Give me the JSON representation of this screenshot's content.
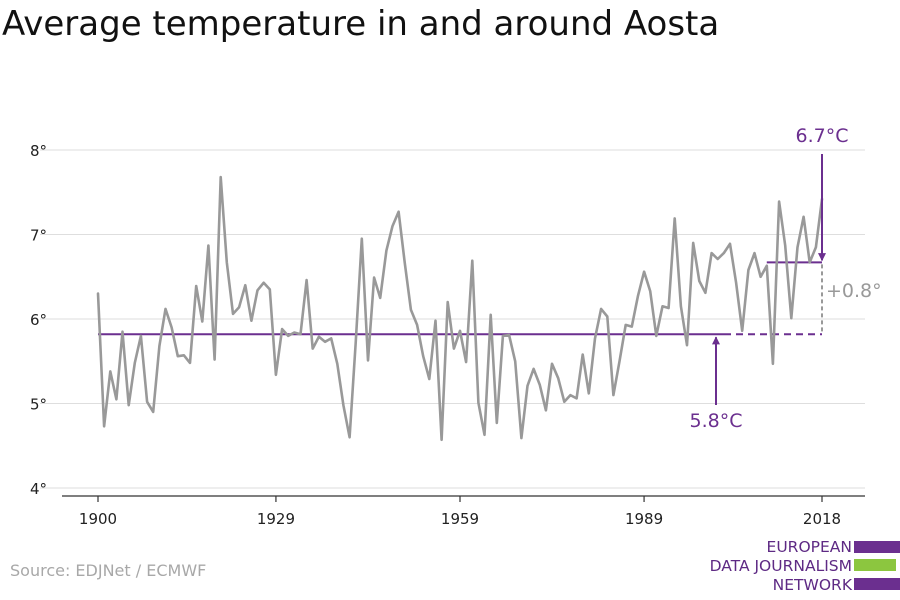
{
  "title": "Average temperature in and around Aosta",
  "source": "Source: EDJNet / ECMWF",
  "logo": {
    "lines": [
      "EUROPEAN",
      "DATA JOURNALISM",
      "NETWORK"
    ],
    "colors": [
      "#6b2f8f",
      "#8cc63f",
      "#6b2f8f"
    ]
  },
  "chart_data": {
    "type": "line",
    "title": "Average temperature in and around Aosta",
    "xlim": [
      1900,
      2018
    ],
    "ylim": [
      4,
      8
    ],
    "x_ticks": [
      1900,
      1929,
      1959,
      1989,
      2018
    ],
    "x_tick_labels": [
      "1900",
      "1929",
      "1959",
      "1989",
      "2018"
    ],
    "y_ticks": [
      4,
      5,
      6,
      7,
      8
    ],
    "y_tick_labels": [
      "4°",
      "5°",
      "6°",
      "7°",
      "8°"
    ],
    "grid": "horizontal",
    "series": [
      {
        "color": "#999999",
        "x": [
          1900,
          1901,
          1902,
          1903,
          1904,
          1905,
          1906,
          1907,
          1908,
          1909,
          1910,
          1911,
          1912,
          1913,
          1914,
          1915,
          1916,
          1917,
          1918,
          1919,
          1920,
          1921,
          1922,
          1923,
          1924,
          1925,
          1926,
          1927,
          1928,
          1929,
          1930,
          1931,
          1932,
          1933,
          1934,
          1935,
          1936,
          1937,
          1938,
          1939,
          1940,
          1941,
          1942,
          1943,
          1944,
          1945,
          1946,
          1947,
          1948,
          1949,
          1950,
          1951,
          1952,
          1953,
          1954,
          1955,
          1956,
          1957,
          1958,
          1959,
          1960,
          1961,
          1962,
          1963,
          1964,
          1965,
          1966,
          1967,
          1968,
          1969,
          1970,
          1971,
          1972,
          1973,
          1974,
          1975,
          1976,
          1977,
          1978,
          1979,
          1980,
          1981,
          1982,
          1983,
          1984,
          1985,
          1986,
          1987,
          1988,
          1989,
          1990,
          1991,
          1992,
          1993,
          1994,
          1995,
          1996,
          1997,
          1998,
          1999,
          2000,
          2001,
          2002,
          2003,
          2004,
          2005,
          2006,
          2007,
          2008,
          2009,
          2010,
          2011,
          2012,
          2013,
          2014,
          2015,
          2016,
          2017,
          2018
        ],
        "values": [
          6.3,
          4.73,
          5.38,
          5.05,
          5.85,
          4.98,
          5.48,
          5.8,
          5.02,
          4.9,
          5.68,
          6.12,
          5.9,
          5.56,
          5.57,
          5.48,
          6.39,
          5.97,
          6.87,
          5.52,
          7.68,
          6.67,
          6.06,
          6.14,
          6.4,
          5.98,
          6.34,
          6.43,
          6.35,
          5.34,
          5.88,
          5.8,
          5.84,
          5.82,
          6.46,
          5.65,
          5.79,
          5.73,
          5.77,
          5.47,
          4.98,
          4.6,
          5.72,
          6.95,
          5.51,
          6.49,
          6.25,
          6.81,
          7.1,
          7.27,
          6.66,
          6.11,
          5.93,
          5.56,
          5.29,
          5.98,
          4.57,
          6.2,
          5.65,
          5.86,
          5.49,
          6.69,
          5.01,
          4.63,
          6.05,
          4.77,
          5.8,
          5.81,
          5.5,
          4.59,
          5.21,
          5.41,
          5.22,
          4.92,
          5.47,
          5.3,
          5.02,
          5.1,
          5.06,
          5.58,
          5.12,
          5.77,
          6.12,
          6.03,
          5.1,
          5.5,
          5.93,
          5.91,
          6.27,
          6.56,
          6.33,
          5.8,
          6.15,
          6.13,
          7.19,
          6.15,
          5.69,
          6.9,
          6.45,
          6.31,
          6.78,
          6.71,
          6.78,
          6.89,
          6.43,
          5.86,
          6.58,
          6.78,
          6.5,
          6.63,
          5.47,
          7.39,
          6.87,
          6.01,
          6.85,
          7.21,
          6.67,
          6.85,
          7.42
        ]
      }
    ],
    "reference_lines": [
      {
        "label": "5.8°C",
        "value": 5.82,
        "from": 1900,
        "to": 2018,
        "color": "#6b2f8f"
      },
      {
        "label": "6.7°C",
        "value": 6.67,
        "from": 2009,
        "to": 2018,
        "color": "#6b2f8f"
      }
    ],
    "difference_label": "+0.8°",
    "difference_color": "#999999"
  }
}
